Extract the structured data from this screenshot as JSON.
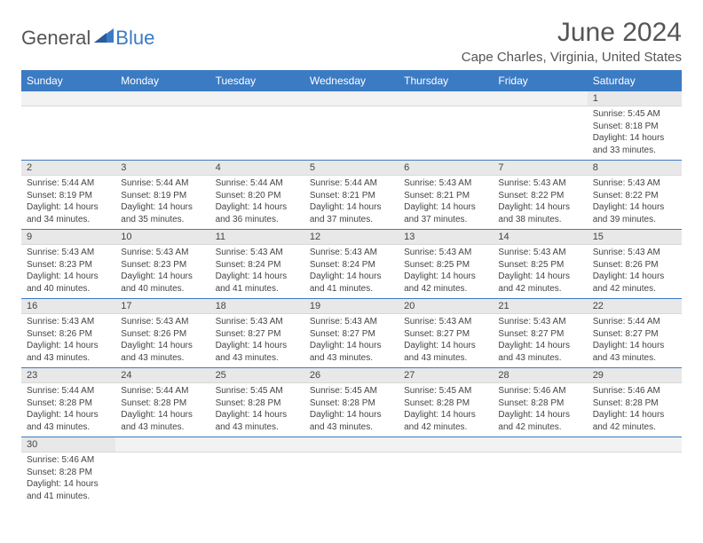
{
  "logo": {
    "text_dark": "General",
    "text_blue": "Blue"
  },
  "title": "June 2024",
  "location": "Cape Charles, Virginia, United States",
  "colors": {
    "header_bg": "#3b7bc4",
    "header_text": "#ffffff",
    "daynum_bg": "#e8e8e8",
    "text": "#444444",
    "title_text": "#555555",
    "row_border": "#3b7bc4"
  },
  "day_headers": [
    "Sunday",
    "Monday",
    "Tuesday",
    "Wednesday",
    "Thursday",
    "Friday",
    "Saturday"
  ],
  "weeks": [
    [
      {
        "n": "",
        "sr": "",
        "ss": "",
        "dl": ""
      },
      {
        "n": "",
        "sr": "",
        "ss": "",
        "dl": ""
      },
      {
        "n": "",
        "sr": "",
        "ss": "",
        "dl": ""
      },
      {
        "n": "",
        "sr": "",
        "ss": "",
        "dl": ""
      },
      {
        "n": "",
        "sr": "",
        "ss": "",
        "dl": ""
      },
      {
        "n": "",
        "sr": "",
        "ss": "",
        "dl": ""
      },
      {
        "n": "1",
        "sr": "Sunrise: 5:45 AM",
        "ss": "Sunset: 8:18 PM",
        "dl": "Daylight: 14 hours and 33 minutes."
      }
    ],
    [
      {
        "n": "2",
        "sr": "Sunrise: 5:44 AM",
        "ss": "Sunset: 8:19 PM",
        "dl": "Daylight: 14 hours and 34 minutes."
      },
      {
        "n": "3",
        "sr": "Sunrise: 5:44 AM",
        "ss": "Sunset: 8:19 PM",
        "dl": "Daylight: 14 hours and 35 minutes."
      },
      {
        "n": "4",
        "sr": "Sunrise: 5:44 AM",
        "ss": "Sunset: 8:20 PM",
        "dl": "Daylight: 14 hours and 36 minutes."
      },
      {
        "n": "5",
        "sr": "Sunrise: 5:44 AM",
        "ss": "Sunset: 8:21 PM",
        "dl": "Daylight: 14 hours and 37 minutes."
      },
      {
        "n": "6",
        "sr": "Sunrise: 5:43 AM",
        "ss": "Sunset: 8:21 PM",
        "dl": "Daylight: 14 hours and 37 minutes."
      },
      {
        "n": "7",
        "sr": "Sunrise: 5:43 AM",
        "ss": "Sunset: 8:22 PM",
        "dl": "Daylight: 14 hours and 38 minutes."
      },
      {
        "n": "8",
        "sr": "Sunrise: 5:43 AM",
        "ss": "Sunset: 8:22 PM",
        "dl": "Daylight: 14 hours and 39 minutes."
      }
    ],
    [
      {
        "n": "9",
        "sr": "Sunrise: 5:43 AM",
        "ss": "Sunset: 8:23 PM",
        "dl": "Daylight: 14 hours and 40 minutes."
      },
      {
        "n": "10",
        "sr": "Sunrise: 5:43 AM",
        "ss": "Sunset: 8:23 PM",
        "dl": "Daylight: 14 hours and 40 minutes."
      },
      {
        "n": "11",
        "sr": "Sunrise: 5:43 AM",
        "ss": "Sunset: 8:24 PM",
        "dl": "Daylight: 14 hours and 41 minutes."
      },
      {
        "n": "12",
        "sr": "Sunrise: 5:43 AM",
        "ss": "Sunset: 8:24 PM",
        "dl": "Daylight: 14 hours and 41 minutes."
      },
      {
        "n": "13",
        "sr": "Sunrise: 5:43 AM",
        "ss": "Sunset: 8:25 PM",
        "dl": "Daylight: 14 hours and 42 minutes."
      },
      {
        "n": "14",
        "sr": "Sunrise: 5:43 AM",
        "ss": "Sunset: 8:25 PM",
        "dl": "Daylight: 14 hours and 42 minutes."
      },
      {
        "n": "15",
        "sr": "Sunrise: 5:43 AM",
        "ss": "Sunset: 8:26 PM",
        "dl": "Daylight: 14 hours and 42 minutes."
      }
    ],
    [
      {
        "n": "16",
        "sr": "Sunrise: 5:43 AM",
        "ss": "Sunset: 8:26 PM",
        "dl": "Daylight: 14 hours and 43 minutes."
      },
      {
        "n": "17",
        "sr": "Sunrise: 5:43 AM",
        "ss": "Sunset: 8:26 PM",
        "dl": "Daylight: 14 hours and 43 minutes."
      },
      {
        "n": "18",
        "sr": "Sunrise: 5:43 AM",
        "ss": "Sunset: 8:27 PM",
        "dl": "Daylight: 14 hours and 43 minutes."
      },
      {
        "n": "19",
        "sr": "Sunrise: 5:43 AM",
        "ss": "Sunset: 8:27 PM",
        "dl": "Daylight: 14 hours and 43 minutes."
      },
      {
        "n": "20",
        "sr": "Sunrise: 5:43 AM",
        "ss": "Sunset: 8:27 PM",
        "dl": "Daylight: 14 hours and 43 minutes."
      },
      {
        "n": "21",
        "sr": "Sunrise: 5:43 AM",
        "ss": "Sunset: 8:27 PM",
        "dl": "Daylight: 14 hours and 43 minutes."
      },
      {
        "n": "22",
        "sr": "Sunrise: 5:44 AM",
        "ss": "Sunset: 8:27 PM",
        "dl": "Daylight: 14 hours and 43 minutes."
      }
    ],
    [
      {
        "n": "23",
        "sr": "Sunrise: 5:44 AM",
        "ss": "Sunset: 8:28 PM",
        "dl": "Daylight: 14 hours and 43 minutes."
      },
      {
        "n": "24",
        "sr": "Sunrise: 5:44 AM",
        "ss": "Sunset: 8:28 PM",
        "dl": "Daylight: 14 hours and 43 minutes."
      },
      {
        "n": "25",
        "sr": "Sunrise: 5:45 AM",
        "ss": "Sunset: 8:28 PM",
        "dl": "Daylight: 14 hours and 43 minutes."
      },
      {
        "n": "26",
        "sr": "Sunrise: 5:45 AM",
        "ss": "Sunset: 8:28 PM",
        "dl": "Daylight: 14 hours and 43 minutes."
      },
      {
        "n": "27",
        "sr": "Sunrise: 5:45 AM",
        "ss": "Sunset: 8:28 PM",
        "dl": "Daylight: 14 hours and 42 minutes."
      },
      {
        "n": "28",
        "sr": "Sunrise: 5:46 AM",
        "ss": "Sunset: 8:28 PM",
        "dl": "Daylight: 14 hours and 42 minutes."
      },
      {
        "n": "29",
        "sr": "Sunrise: 5:46 AM",
        "ss": "Sunset: 8:28 PM",
        "dl": "Daylight: 14 hours and 42 minutes."
      }
    ],
    [
      {
        "n": "30",
        "sr": "Sunrise: 5:46 AM",
        "ss": "Sunset: 8:28 PM",
        "dl": "Daylight: 14 hours and 41 minutes."
      },
      {
        "n": "",
        "sr": "",
        "ss": "",
        "dl": ""
      },
      {
        "n": "",
        "sr": "",
        "ss": "",
        "dl": ""
      },
      {
        "n": "",
        "sr": "",
        "ss": "",
        "dl": ""
      },
      {
        "n": "",
        "sr": "",
        "ss": "",
        "dl": ""
      },
      {
        "n": "",
        "sr": "",
        "ss": "",
        "dl": ""
      },
      {
        "n": "",
        "sr": "",
        "ss": "",
        "dl": ""
      }
    ]
  ]
}
